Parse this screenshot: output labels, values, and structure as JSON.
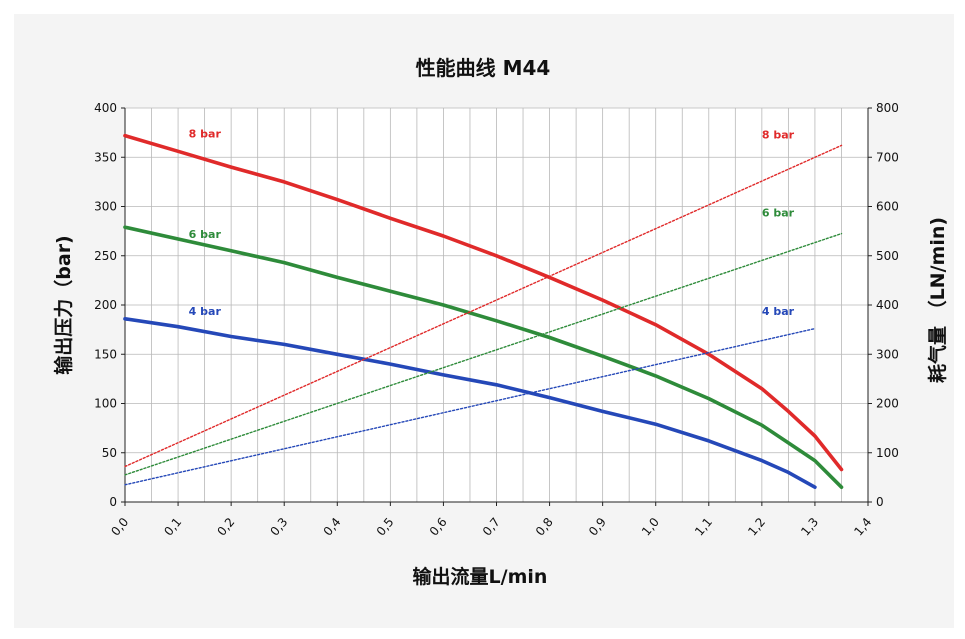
{
  "chart_data": {
    "type": "line",
    "title": "性能曲线  M44",
    "xlabel": "输出流量L/min",
    "ylabel_left": "输出压力（bar)",
    "ylabel_right": "耗气量 （LN/min)",
    "xlim": [
      0,
      1.4
    ],
    "ylim_left": [
      0,
      400
    ],
    "ylim_right": [
      0,
      800
    ],
    "x_ticks": [
      "0,0",
      "0,1",
      "0,2",
      "0,3",
      "0,4",
      "0,5",
      "0,6",
      "0,7",
      "0,8",
      "0,9",
      "1,0",
      "1,1",
      "1,2",
      "1,3",
      "1,4"
    ],
    "y_left_ticks": [
      "0",
      "50",
      "100",
      "150",
      "200",
      "250",
      "300",
      "350",
      "400"
    ],
    "y_right_ticks": [
      "0",
      "100",
      "200",
      "300",
      "400",
      "500",
      "600",
      "700",
      "800"
    ],
    "grid": true,
    "colors": {
      "red": "#e02a2a",
      "green": "#2e8b3a",
      "blue": "#2548b8"
    },
    "series": [
      {
        "name": "8 bar",
        "axis": "left",
        "style": "solid",
        "color": "#e02a2a",
        "x": [
          0,
          0.1,
          0.2,
          0.3,
          0.4,
          0.5,
          0.6,
          0.7,
          0.8,
          0.9,
          1.0,
          1.1,
          1.2,
          1.25,
          1.3,
          1.35
        ],
        "y": [
          372,
          356,
          340,
          325,
          307,
          288,
          270,
          250,
          228,
          205,
          180,
          150,
          115,
          92,
          67,
          33
        ]
      },
      {
        "name": "6 bar",
        "axis": "left",
        "style": "solid",
        "color": "#2e8b3a",
        "x": [
          0,
          0.1,
          0.2,
          0.3,
          0.4,
          0.5,
          0.6,
          0.7,
          0.8,
          0.9,
          1.0,
          1.1,
          1.2,
          1.25,
          1.3,
          1.35
        ],
        "y": [
          279,
          267,
          255,
          243,
          228,
          214,
          200,
          184,
          167,
          148,
          128,
          105,
          78,
          60,
          42,
          15
        ]
      },
      {
        "name": "4 bar",
        "axis": "left",
        "style": "solid",
        "color": "#2548b8",
        "x": [
          0,
          0.1,
          0.2,
          0.3,
          0.4,
          0.5,
          0.6,
          0.7,
          0.8,
          0.9,
          1.0,
          1.1,
          1.2,
          1.25,
          1.3
        ],
        "y": [
          186,
          178,
          168,
          160,
          150,
          140,
          129,
          119,
          106,
          92,
          79,
          62,
          42,
          30,
          15
        ]
      },
      {
        "name": "8 bar",
        "axis": "right",
        "style": "dotted",
        "color": "#e02a2a",
        "x": [
          0,
          1.35
        ],
        "y": [
          72,
          724
        ]
      },
      {
        "name": "6 bar",
        "axis": "right",
        "style": "dotted",
        "color": "#2e8b3a",
        "x": [
          0,
          1.35
        ],
        "y": [
          55,
          545
        ]
      },
      {
        "name": "4 bar",
        "axis": "right",
        "style": "dotted",
        "color": "#2548b8",
        "x": [
          0,
          1.3
        ],
        "y": [
          35,
          352
        ]
      }
    ],
    "labels": [
      {
        "text": "8 bar",
        "color": "#e02a2a",
        "x": 0.12,
        "axis": "left",
        "y": 370
      },
      {
        "text": "6 bar",
        "color": "#2e8b3a",
        "x": 0.12,
        "axis": "left",
        "y": 268
      },
      {
        "text": "4 bar",
        "color": "#2548b8",
        "x": 0.12,
        "axis": "left",
        "y": 190
      },
      {
        "text": "8 bar",
        "color": "#e02a2a",
        "x": 1.2,
        "axis": "right",
        "y": 738
      },
      {
        "text": "6 bar",
        "color": "#2e8b3a",
        "x": 1.2,
        "axis": "right",
        "y": 580
      },
      {
        "text": "4 bar",
        "color": "#2548b8",
        "x": 1.2,
        "axis": "right",
        "y": 380
      }
    ]
  }
}
